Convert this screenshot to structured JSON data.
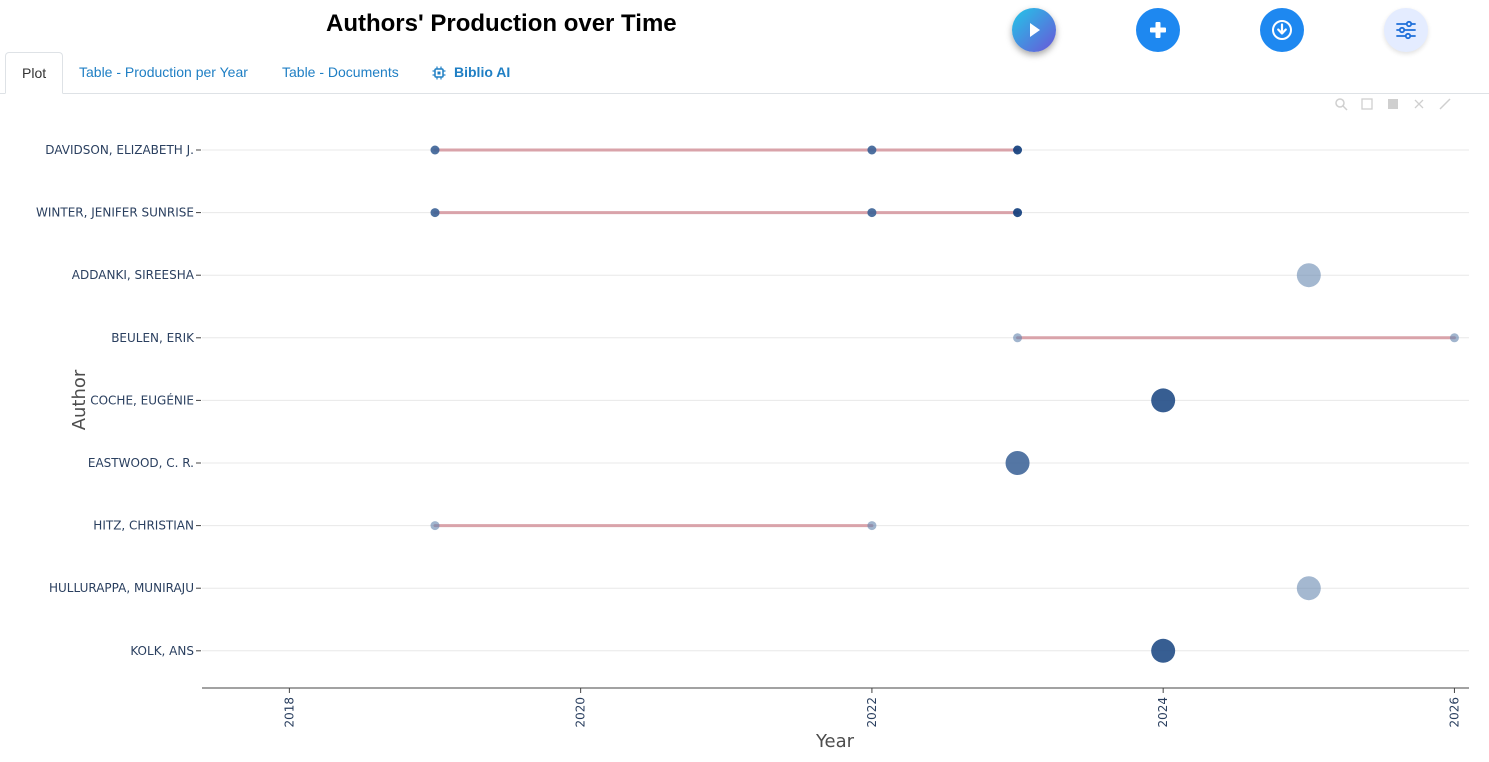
{
  "page": {
    "title": "Authors' Production over Time"
  },
  "toolbar": {
    "buttons": [
      {
        "name": "play-button",
        "icon": "play-icon"
      },
      {
        "name": "add-button",
        "icon": "plus-icon"
      },
      {
        "name": "download-button",
        "icon": "download-icon"
      },
      {
        "name": "settings-button",
        "icon": "sliders-icon"
      }
    ]
  },
  "tabs": [
    {
      "label": "Plot",
      "active": true
    },
    {
      "label": "Table - Production per Year",
      "active": false
    },
    {
      "label": "Table - Documents",
      "active": false
    },
    {
      "label": "Biblio AI",
      "active": false,
      "icon": "chip-icon"
    }
  ],
  "colors": {
    "segment": "#d9a3aa",
    "point_dark": "#0d3b7a",
    "point_mid": "#2f5f98",
    "point_light": "#8faac9",
    "grid": "#e8e8e8",
    "accent": "#1e88f0"
  },
  "chart_data": {
    "type": "scatter",
    "title": "",
    "xlabel": "Year",
    "ylabel": "Author",
    "xlim": [
      2017.4,
      2026.1
    ],
    "xticks": [
      2018,
      2020,
      2022,
      2024,
      2026
    ],
    "authors": [
      "DAVIDSON, ELIZABETH J.",
      "WINTER, JENIFER SUNRISE",
      "ADDANKI, SIREESHA",
      "BEULEN, ERIK",
      "COCHE, EUGÉNIE",
      "EASTWOOD, C. R.",
      "HITZ, CHRISTIAN",
      "HULLURAPPA, MUNIRAJU",
      "KOLK, ANS"
    ],
    "segments": [
      {
        "author": "DAVIDSON, ELIZABETH J.",
        "start": 2019,
        "end": 2023
      },
      {
        "author": "WINTER, JENIFER SUNRISE",
        "start": 2019,
        "end": 2023
      },
      {
        "author": "BEULEN, ERIK",
        "start": 2023,
        "end": 2026
      },
      {
        "author": "HITZ, CHRISTIAN",
        "start": 2019,
        "end": 2022
      }
    ],
    "points": [
      {
        "author": "DAVIDSON, ELIZABETH J.",
        "year": 2019,
        "articles": 1,
        "intensity": 0.65
      },
      {
        "author": "DAVIDSON, ELIZABETH J.",
        "year": 2022,
        "articles": 1,
        "intensity": 0.65
      },
      {
        "author": "DAVIDSON, ELIZABETH J.",
        "year": 2023,
        "articles": 1,
        "intensity": 1.0
      },
      {
        "author": "WINTER, JENIFER SUNRISE",
        "year": 2019,
        "articles": 1,
        "intensity": 0.65
      },
      {
        "author": "WINTER, JENIFER SUNRISE",
        "year": 2022,
        "articles": 1,
        "intensity": 0.65
      },
      {
        "author": "WINTER, JENIFER SUNRISE",
        "year": 2023,
        "articles": 1,
        "intensity": 1.0
      },
      {
        "author": "ADDANKI, SIREESHA",
        "year": 2025,
        "articles": 2,
        "intensity": 0.3
      },
      {
        "author": "BEULEN, ERIK",
        "year": 2023,
        "articles": 1,
        "intensity": 0.35
      },
      {
        "author": "BEULEN, ERIK",
        "year": 2026,
        "articles": 1,
        "intensity": 0.35
      },
      {
        "author": "COCHE, EUGÉNIE",
        "year": 2024,
        "articles": 2,
        "intensity": 0.85
      },
      {
        "author": "EASTWOOD, C. R.",
        "year": 2023,
        "articles": 2,
        "intensity": 0.6
      },
      {
        "author": "HITZ, CHRISTIAN",
        "year": 2019,
        "articles": 1,
        "intensity": 0.35
      },
      {
        "author": "HITZ, CHRISTIAN",
        "year": 2022,
        "articles": 1,
        "intensity": 0.35
      },
      {
        "author": "HULLURAPPA, MUNIRAJU",
        "year": 2025,
        "articles": 2,
        "intensity": 0.3
      },
      {
        "author": "KOLK, ANS",
        "year": 2024,
        "articles": 2,
        "intensity": 0.85
      }
    ],
    "grid": true,
    "legend": "none"
  }
}
